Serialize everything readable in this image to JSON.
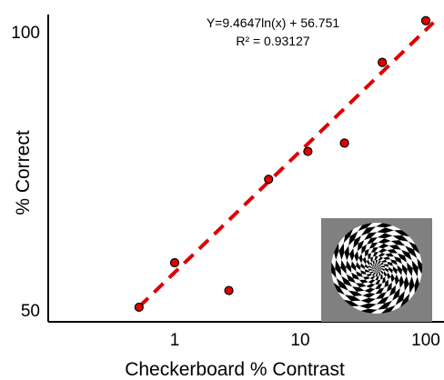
{
  "chart_data": {
    "type": "scatter",
    "title": "",
    "xlabel": "Checkerboard % Contrast",
    "ylabel": "% Correct",
    "xscale": "log",
    "xlim": [
      0.3,
      110
    ],
    "ylim": [
      50,
      102
    ],
    "x_ticks": [
      1,
      10,
      100
    ],
    "x_tick_labels": [
      "1",
      "10",
      "100"
    ],
    "y_ticks": [
      50,
      100
    ],
    "y_tick_labels": [
      "50",
      "100"
    ],
    "grid": false,
    "legend": "none",
    "series": [
      {
        "x": [
          0.52,
          1.0,
          2.7,
          5.6,
          11.5,
          22.5,
          45,
          100
        ],
        "y": [
          50.5,
          58.5,
          53.5,
          73.5,
          78.5,
          80.0,
          94.5,
          102.0
        ],
        "color": "#e00000"
      }
    ],
    "trendline": {
      "type": "logarithmic",
      "slope": 9.4647,
      "intercept": 56.751,
      "color": "#e00000",
      "style": "dashed",
      "equation_label": "Y=9.4647ln(x) + 56.751",
      "r2_label": "R² = 0.93127",
      "legend_position": "top-right"
    },
    "inset": {
      "type": "checkerboard-stimulus-image",
      "background": "#808080"
    }
  }
}
